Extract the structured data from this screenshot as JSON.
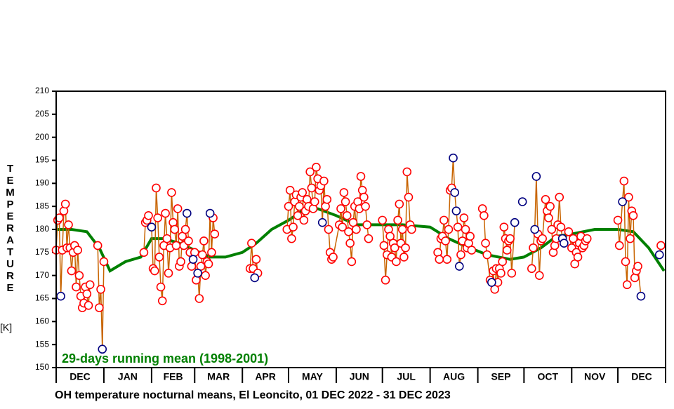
{
  "chart_data": {
    "type": "scatter",
    "title": "OH temperature nocturnal means, El Leoncito, 01 DEC 2022 - 31 DEC 2023",
    "y_label": "TEMPERATURE",
    "y_unit": "[K]",
    "annotation": "29-days running mean (1998-2001)",
    "xlim": [
      0,
      396
    ],
    "xticks": [
      {
        "value": 0,
        "label": "DEC"
      },
      {
        "value": 31,
        "label": "JAN"
      },
      {
        "value": 62,
        "label": "FEB"
      },
      {
        "value": 90,
        "label": "MAR"
      },
      {
        "value": 121,
        "label": "APR"
      },
      {
        "value": 151,
        "label": "MAY"
      },
      {
        "value": 182,
        "label": "JUN"
      },
      {
        "value": 212,
        "label": "JUL"
      },
      {
        "value": 243,
        "label": "AUG"
      },
      {
        "value": 274,
        "label": "SEP"
      },
      {
        "value": 304,
        "label": "OCT"
      },
      {
        "value": 335,
        "label": "NOV"
      },
      {
        "value": 365,
        "label": "DEC"
      }
    ],
    "ylim": [
      150,
      210
    ],
    "yticks": [
      150,
      155,
      160,
      165,
      170,
      175,
      180,
      185,
      190,
      195,
      200,
      205,
      210
    ],
    "line_color": "#c86400",
    "series": [
      {
        "color": "#ff0000",
        "x": [
          0,
          1,
          2,
          4,
          5,
          6,
          7,
          8,
          9,
          10,
          11,
          12,
          13,
          14,
          15,
          16,
          17,
          18,
          19,
          20,
          21,
          22,
          27,
          28,
          29,
          31,
          57,
          58,
          59,
          60,
          63,
          64,
          65,
          66,
          67,
          68,
          69,
          70,
          71,
          72,
          73,
          74,
          75,
          76,
          77,
          78,
          79,
          80,
          81,
          82,
          83,
          84,
          86,
          87,
          88,
          90,
          91,
          93,
          94,
          95,
          96,
          97,
          98,
          99,
          101,
          102,
          103,
          126,
          127,
          128,
          130,
          131,
          150,
          151,
          152,
          153,
          154,
          155,
          156,
          157,
          158,
          159,
          160,
          161,
          162,
          163,
          164,
          165,
          166,
          167,
          168,
          169,
          170,
          171,
          172,
          174,
          175,
          176,
          177,
          178,
          179,
          180,
          184,
          185,
          186,
          187,
          188,
          189,
          190,
          191,
          192,
          193,
          194,
          195,
          196,
          197,
          198,
          199,
          200,
          201,
          202,
          203,
          212,
          213,
          214,
          215,
          216,
          217,
          218,
          219,
          220,
          221,
          222,
          223,
          224,
          225,
          226,
          227,
          228,
          229,
          230,
          231,
          248,
          249,
          250,
          251,
          252,
          253,
          254,
          255,
          256,
          257,
          261,
          263,
          264,
          265,
          266,
          267,
          268,
          269,
          270,
          277,
          278,
          279,
          280,
          282,
          284,
          285,
          286,
          287,
          288,
          289,
          290,
          291,
          292,
          293,
          294,
          295,
          296,
          309,
          310,
          313,
          314,
          315,
          316,
          318,
          319,
          320,
          321,
          322,
          323,
          324,
          325,
          326,
          327,
          328,
          333,
          335,
          336,
          337,
          338,
          339,
          340,
          341,
          342,
          343,
          344,
          345,
          365,
          366,
          369,
          370,
          371,
          372,
          373,
          374,
          375,
          376,
          377,
          378,
          393
        ],
        "values": [
          175.5,
          182,
          182.5,
          175.5,
          184,
          185.5,
          176,
          181,
          176,
          171,
          175,
          176.5,
          167.5,
          175.5,
          170,
          165.5,
          163,
          164,
          167.5,
          166,
          163.5,
          168,
          176.5,
          163,
          167,
          173,
          175,
          181.5,
          182,
          183,
          171.5,
          171,
          189,
          182.5,
          174,
          167.5,
          164.5,
          176.5,
          183.5,
          178,
          170.5,
          176,
          188,
          181.5,
          180,
          176.5,
          184.5,
          172,
          173,
          178.5,
          176.5,
          180,
          177.5,
          175,
          172,
          175,
          169,
          165,
          172,
          174.5,
          177.5,
          170,
          173,
          172.5,
          175,
          182.5,
          179,
          171.5,
          177,
          171.5,
          173.5,
          170.5,
          180,
          185,
          188.5,
          178,
          180.5,
          186,
          187.5,
          183,
          185,
          187,
          188,
          182,
          184,
          186.5,
          185,
          192.5,
          189,
          184.5,
          186,
          193.5,
          191,
          188.5,
          189.5,
          190.5,
          185,
          186.5,
          180,
          175,
          173.5,
          174,
          181,
          184.5,
          180.5,
          188,
          186,
          183,
          179.5,
          177,
          173,
          181.5,
          185,
          180,
          186,
          184.5,
          191.5,
          188.5,
          187,
          185,
          181,
          178,
          182,
          176.5,
          169,
          174.5,
          180,
          178.5,
          174,
          177,
          176,
          173,
          182,
          185.5,
          177,
          180,
          174,
          176,
          192.5,
          187,
          181,
          180,
          175,
          173.5,
          178,
          178.5,
          182,
          177.5,
          173.5,
          180,
          188.5,
          189,
          180.5,
          174.5,
          177.5,
          182.5,
          180,
          176,
          177,
          178.5,
          175.5,
          184.5,
          183,
          177,
          174.5,
          169,
          171,
          167,
          171.5,
          168.5,
          171.5,
          170.5,
          173,
          180.5,
          178,
          175.5,
          177.5,
          178,
          170.5,
          171.5,
          176,
          179,
          170,
          177.5,
          178,
          186.5,
          184,
          182.5,
          185,
          180,
          175,
          176.5,
          178,
          181,
          187,
          180.5,
          179.5,
          176,
          178,
          172.5,
          175,
          174,
          177,
          178.5,
          176,
          176.5,
          177.5,
          178,
          182,
          176.5,
          190.5,
          173,
          168,
          187,
          178,
          184,
          183,
          169.5,
          171,
          172,
          176.5
        ]
      },
      {
        "color": "#000080",
        "x": [
          3,
          30,
          62,
          85,
          89,
          92,
          100,
          129,
          173,
          258,
          259,
          260,
          262,
          283,
          298,
          303,
          311,
          312,
          329,
          330,
          368,
          380,
          392
        ],
        "values": [
          165.5,
          154,
          180.5,
          183.5,
          173.5,
          170.5,
          183.5,
          169.5,
          181.5,
          195.5,
          188,
          184,
          172,
          168.5,
          181.5,
          186,
          180,
          191.5,
          178,
          177,
          186,
          165.5,
          174.5
        ]
      },
      {
        "type": "line",
        "color": "#008000",
        "x": [
          0,
          10,
          20,
          28,
          35,
          45,
          55,
          62,
          70,
          80,
          90,
          100,
          110,
          121,
          130,
          140,
          151,
          160,
          170,
          182,
          195,
          212,
          225,
          243,
          255,
          265,
          280,
          295,
          304,
          315,
          325,
          335,
          350,
          365,
          375,
          385,
          395
        ],
        "values": [
          180,
          180,
          179.5,
          176,
          171,
          173,
          174,
          178,
          178,
          177,
          175.5,
          174,
          174,
          175,
          177,
          180,
          182,
          184,
          184.5,
          183,
          181,
          181,
          181,
          180.5,
          178,
          176.5,
          174.5,
          173.5,
          174,
          176,
          178.5,
          179,
          180,
          180,
          179.5,
          176,
          171
        ]
      }
    ]
  }
}
